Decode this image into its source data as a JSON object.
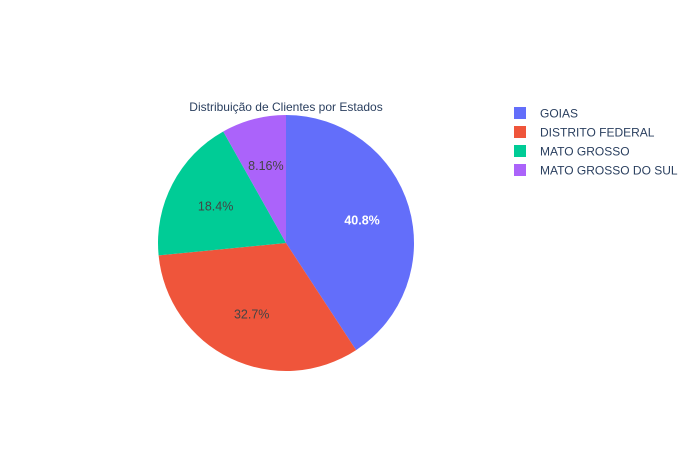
{
  "chart_data": {
    "type": "pie",
    "title": "Distribuição de Clientes por Estados",
    "categories": [
      "GOIAS",
      "DISTRITO FEDERAL",
      "MATO GROSSO",
      "MATO GROSSO DO SUL"
    ],
    "values": [
      40.8,
      32.7,
      18.4,
      8.16
    ],
    "percent_labels": [
      "40.8%",
      "32.7%",
      "18.4%",
      "8.16%"
    ],
    "colors": [
      "#636efa",
      "#EF553B",
      "#00cc96",
      "#ab63fa"
    ],
    "label_colors": [
      "#ffffff",
      "#444444",
      "#444444",
      "#444444"
    ],
    "direction": "clockwise",
    "start": "top",
    "legend": {
      "placement": "top-right",
      "entries": [
        "GOIAS",
        "DISTRITO FEDERAL",
        "MATO GROSSO",
        "MATO GROSSO DO SUL"
      ]
    }
  }
}
